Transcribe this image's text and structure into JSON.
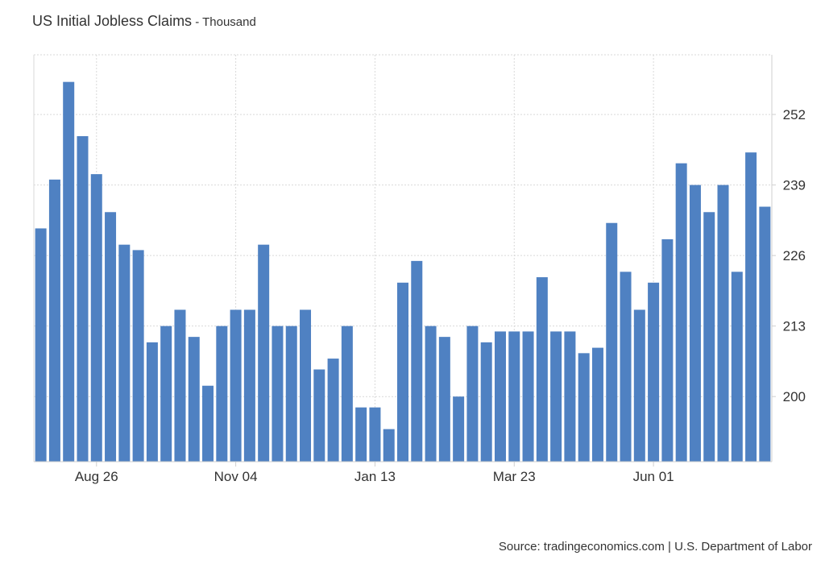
{
  "header": {
    "title": "US Initial Jobless Claims",
    "unit": " - Thousand"
  },
  "footer": {
    "source": "Source: tradingeconomics.com | U.S. Department of Labor"
  },
  "colors": {
    "bar": "#4f81c2",
    "grid": "#d9d9d9",
    "axis": "#cfcfcf",
    "text": "#333333"
  },
  "chart_data": {
    "type": "bar",
    "title": "US Initial Jobless Claims",
    "unit": "Thousand",
    "ylim": [
      188,
      263
    ],
    "yticks": [
      200,
      213,
      226,
      239,
      252
    ],
    "y_axis_side": "right",
    "grid": true,
    "xticks": [
      {
        "label": "Aug 26",
        "index": 4
      },
      {
        "label": "Nov 04",
        "index": 14
      },
      {
        "label": "Jan 13",
        "index": 24
      },
      {
        "label": "Mar 23",
        "index": 34
      },
      {
        "label": "Jun 01",
        "index": 44
      }
    ],
    "values": [
      231,
      240,
      258,
      248,
      241,
      234,
      228,
      227,
      210,
      213,
      216,
      211,
      202,
      213,
      216,
      216,
      228,
      213,
      213,
      216,
      205,
      207,
      213,
      198,
      198,
      194,
      221,
      225,
      213,
      211,
      200,
      213,
      210,
      212,
      212,
      212,
      222,
      212,
      212,
      208,
      209,
      232,
      223,
      216,
      221,
      229,
      243,
      239,
      234,
      239,
      223,
      245,
      235
    ]
  }
}
